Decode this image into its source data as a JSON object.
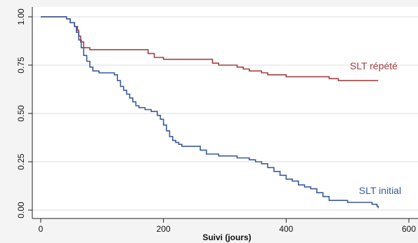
{
  "chart_data": {
    "type": "line",
    "title": "",
    "xlabel": "Suivi (jours)",
    "ylabel": "",
    "xlim": [
      0,
      600
    ],
    "ylim": [
      0,
      1
    ],
    "x_ticks": [
      0,
      200,
      400,
      600
    ],
    "x_tick_labels": [
      "0",
      "200",
      "400",
      "600"
    ],
    "y_ticks": [
      0,
      0.25,
      0.5,
      0.75,
      1
    ],
    "y_tick_labels": [
      "0.00",
      "0.25",
      "0.50",
      "0.75",
      "1.00"
    ],
    "grid": "horizontal",
    "series": [
      {
        "name": "SLT répété",
        "color": "#a04040",
        "x": [
          0,
          35,
          42,
          48,
          55,
          60,
          62,
          65,
          70,
          80,
          170,
          175,
          185,
          200,
          270,
          280,
          290,
          320,
          330,
          340,
          350,
          360,
          370,
          390,
          400,
          410,
          430,
          460,
          470,
          480,
          485,
          550
        ],
        "y": [
          1,
          1,
          0.99,
          0.97,
          0.95,
          0.93,
          0.9,
          0.87,
          0.84,
          0.83,
          0.83,
          0.81,
          0.79,
          0.78,
          0.78,
          0.76,
          0.75,
          0.74,
          0.73,
          0.72,
          0.72,
          0.71,
          0.7,
          0.7,
          0.69,
          0.69,
          0.69,
          0.69,
          0.68,
          0.68,
          0.67,
          0.67
        ]
      },
      {
        "name": "SLT initial",
        "color": "#3a5a9a",
        "x": [
          0,
          35,
          42,
          48,
          55,
          58,
          62,
          66,
          70,
          75,
          80,
          85,
          95,
          120,
          125,
          130,
          135,
          140,
          145,
          150,
          155,
          160,
          170,
          180,
          190,
          195,
          200,
          205,
          210,
          215,
          220,
          225,
          230,
          240,
          260,
          270,
          290,
          320,
          340,
          350,
          360,
          370,
          380,
          390,
          400,
          410,
          420,
          430,
          440,
          450,
          460,
          470,
          490,
          500,
          520,
          540,
          548,
          550
        ],
        "y": [
          1,
          1,
          0.99,
          0.97,
          0.95,
          0.92,
          0.88,
          0.84,
          0.8,
          0.77,
          0.74,
          0.72,
          0.71,
          0.7,
          0.67,
          0.64,
          0.62,
          0.6,
          0.58,
          0.56,
          0.54,
          0.53,
          0.52,
          0.51,
          0.49,
          0.47,
          0.44,
          0.41,
          0.38,
          0.36,
          0.35,
          0.34,
          0.33,
          0.33,
          0.31,
          0.29,
          0.28,
          0.27,
          0.26,
          0.25,
          0.24,
          0.22,
          0.2,
          0.18,
          0.16,
          0.15,
          0.13,
          0.12,
          0.11,
          0.09,
          0.07,
          0.05,
          0.05,
          0.04,
          0.04,
          0.03,
          0.02,
          0.01
        ]
      }
    ]
  }
}
